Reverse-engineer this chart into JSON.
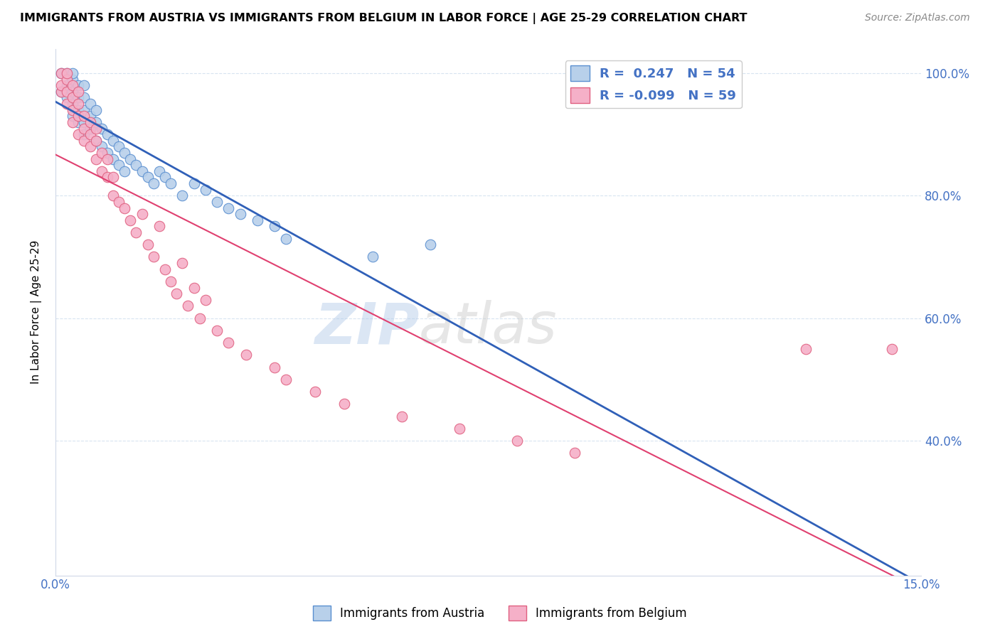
{
  "title": "IMMIGRANTS FROM AUSTRIA VS IMMIGRANTS FROM BELGIUM IN LABOR FORCE | AGE 25-29 CORRELATION CHART",
  "source": "Source: ZipAtlas.com",
  "ylabel": "In Labor Force | Age 25-29",
  "xlim": [
    0.0,
    0.15
  ],
  "ylim": [
    0.18,
    1.04
  ],
  "austria_R": 0.247,
  "austria_N": 54,
  "belgium_R": -0.099,
  "belgium_N": 59,
  "austria_color": "#b8d0ea",
  "belgium_color": "#f5b0c8",
  "austria_edge_color": "#5a8fd0",
  "belgium_edge_color": "#e06080",
  "austria_line_color": "#3060b8",
  "belgium_line_color": "#e04070",
  "watermark_color": "#d0dff0",
  "grid_color": "#d8e4f0",
  "austria_x": [
    0.001,
    0.001,
    0.002,
    0.002,
    0.002,
    0.003,
    0.003,
    0.003,
    0.003,
    0.003,
    0.004,
    0.004,
    0.004,
    0.004,
    0.005,
    0.005,
    0.005,
    0.005,
    0.005,
    0.006,
    0.006,
    0.006,
    0.007,
    0.007,
    0.007,
    0.008,
    0.008,
    0.009,
    0.009,
    0.01,
    0.01,
    0.011,
    0.011,
    0.012,
    0.012,
    0.013,
    0.014,
    0.015,
    0.016,
    0.017,
    0.018,
    0.019,
    0.02,
    0.022,
    0.024,
    0.026,
    0.028,
    0.03,
    0.032,
    0.035,
    0.038,
    0.04,
    0.055,
    0.065
  ],
  "austria_y": [
    0.97,
    1.0,
    0.96,
    0.98,
    1.0,
    0.93,
    0.95,
    0.97,
    0.99,
    1.0,
    0.92,
    0.94,
    0.96,
    0.98,
    0.9,
    0.92,
    0.94,
    0.96,
    0.98,
    0.91,
    0.93,
    0.95,
    0.89,
    0.92,
    0.94,
    0.88,
    0.91,
    0.87,
    0.9,
    0.86,
    0.89,
    0.85,
    0.88,
    0.84,
    0.87,
    0.86,
    0.85,
    0.84,
    0.83,
    0.82,
    0.84,
    0.83,
    0.82,
    0.8,
    0.82,
    0.81,
    0.79,
    0.78,
    0.77,
    0.76,
    0.75,
    0.73,
    0.7,
    0.72
  ],
  "belgium_x": [
    0.001,
    0.001,
    0.001,
    0.002,
    0.002,
    0.002,
    0.002,
    0.003,
    0.003,
    0.003,
    0.003,
    0.004,
    0.004,
    0.004,
    0.004,
    0.005,
    0.005,
    0.005,
    0.006,
    0.006,
    0.006,
    0.007,
    0.007,
    0.007,
    0.008,
    0.008,
    0.009,
    0.009,
    0.01,
    0.01,
    0.011,
    0.012,
    0.013,
    0.014,
    0.015,
    0.016,
    0.017,
    0.018,
    0.019,
    0.02,
    0.021,
    0.022,
    0.023,
    0.024,
    0.025,
    0.026,
    0.028,
    0.03,
    0.033,
    0.038,
    0.04,
    0.045,
    0.05,
    0.06,
    0.07,
    0.08,
    0.09,
    0.13,
    0.145
  ],
  "belgium_y": [
    0.97,
    1.0,
    0.98,
    0.95,
    0.97,
    0.99,
    1.0,
    0.92,
    0.94,
    0.96,
    0.98,
    0.9,
    0.93,
    0.95,
    0.97,
    0.89,
    0.91,
    0.93,
    0.88,
    0.9,
    0.92,
    0.86,
    0.89,
    0.91,
    0.84,
    0.87,
    0.83,
    0.86,
    0.8,
    0.83,
    0.79,
    0.78,
    0.76,
    0.74,
    0.77,
    0.72,
    0.7,
    0.75,
    0.68,
    0.66,
    0.64,
    0.69,
    0.62,
    0.65,
    0.6,
    0.63,
    0.58,
    0.56,
    0.54,
    0.52,
    0.5,
    0.48,
    0.46,
    0.44,
    0.42,
    0.4,
    0.38,
    0.55,
    0.55
  ]
}
